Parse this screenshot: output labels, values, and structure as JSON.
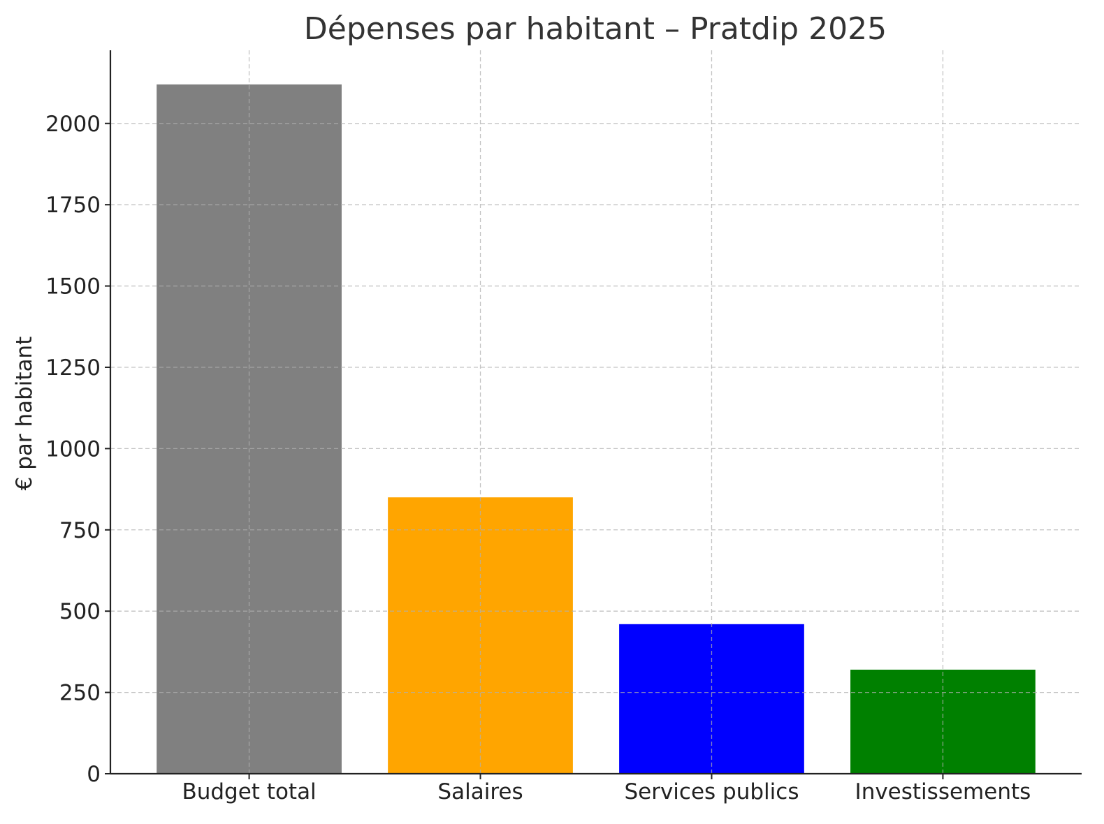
{
  "chart_data": {
    "type": "bar",
    "title": "Dépenses par habitant – Pratdip 2025",
    "xlabel": "",
    "ylabel": "€ par habitant",
    "categories": [
      "Budget total",
      "Salaires",
      "Services publics",
      "Investissements"
    ],
    "values": [
      2120,
      850,
      460,
      320
    ],
    "colors": [
      "#808080",
      "#ffa500",
      "#0000ff",
      "#008000"
    ],
    "ylim": [
      0,
      2225
    ],
    "yticks": [
      0,
      250,
      500,
      750,
      1000,
      1250,
      1500,
      1750,
      2000
    ],
    "grid": true,
    "legend": "none"
  }
}
